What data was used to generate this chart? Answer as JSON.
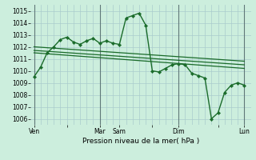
{
  "xlabel": "Pression niveau de la mer( hPa )",
  "bg_color": "#cceedd",
  "grid_color": "#aacccc",
  "line_color": "#1a6b2a",
  "vline_color": "#607878",
  "ylim": [
    1005.5,
    1015.5
  ],
  "yticks": [
    1006,
    1007,
    1008,
    1009,
    1010,
    1011,
    1012,
    1013,
    1014,
    1015
  ],
  "xtick_labels": [
    "Ven",
    "",
    "Mar",
    "Sam",
    "",
    "Dim",
    "",
    "Lun"
  ],
  "xtick_positions": [
    0,
    5,
    10,
    13,
    18,
    22,
    28,
    32
  ],
  "vlines_x": [
    0,
    10,
    22,
    32
  ],
  "xlim": [
    -0.5,
    33
  ],
  "main_series": {
    "x": [
      0,
      1,
      2,
      3,
      4,
      5,
      6,
      7,
      8,
      9,
      10,
      11,
      12,
      13,
      14,
      15,
      16,
      17,
      18,
      19,
      20,
      21,
      22,
      23,
      24,
      25,
      26,
      27,
      28,
      29,
      30,
      31,
      32
    ],
    "y": [
      1009.5,
      1010.3,
      1011.5,
      1012.0,
      1012.6,
      1012.8,
      1012.4,
      1012.2,
      1012.5,
      1012.7,
      1012.3,
      1012.5,
      1012.3,
      1012.2,
      1014.4,
      1014.6,
      1014.8,
      1013.8,
      1010.0,
      1009.9,
      1010.2,
      1010.5,
      1010.6,
      1010.5,
      1009.8,
      1009.6,
      1009.4,
      1006.0,
      1006.5,
      1008.2,
      1008.8,
      1009.0,
      1008.8
    ]
  },
  "trend_lines": [
    {
      "x": [
        0,
        32
      ],
      "y": [
        1012.0,
        1010.8
      ]
    },
    {
      "x": [
        0,
        32
      ],
      "y": [
        1011.7,
        1010.5
      ]
    },
    {
      "x": [
        0,
        32
      ],
      "y": [
        1011.5,
        1010.2
      ]
    }
  ]
}
